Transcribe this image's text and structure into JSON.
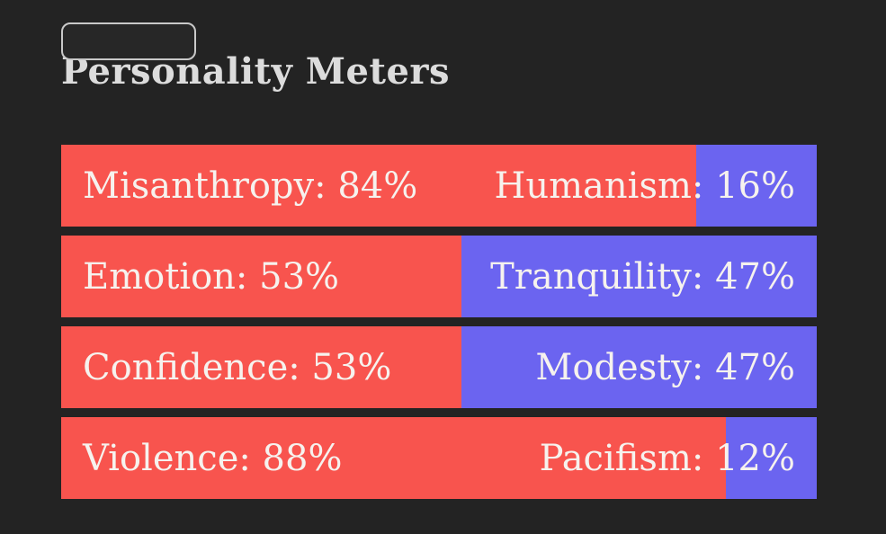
{
  "page": {
    "background": "#232323"
  },
  "heading": "Personality Meters",
  "colors": {
    "left_bar": "#f8544e",
    "right_bar": "#6b64f0",
    "bar_text": "#f6f2ee",
    "heading_text": "#dcdcdc",
    "button_border": "#c9c9c9",
    "button_fill": "#272727"
  },
  "meters": {
    "label_separator": ": ",
    "value_suffix": "%",
    "rows": [
      {
        "left": {
          "label": "Misanthropy",
          "value": 84
        },
        "right": {
          "label": "Humanism",
          "value": 16
        }
      },
      {
        "left": {
          "label": "Emotion",
          "value": 53
        },
        "right": {
          "label": "Tranquility",
          "value": 47
        }
      },
      {
        "left": {
          "label": "Confidence",
          "value": 53
        },
        "right": {
          "label": "Modesty",
          "value": 47
        }
      },
      {
        "left": {
          "label": "Violence",
          "value": 88
        },
        "right": {
          "label": "Pacifism",
          "value": 12
        }
      }
    ]
  }
}
